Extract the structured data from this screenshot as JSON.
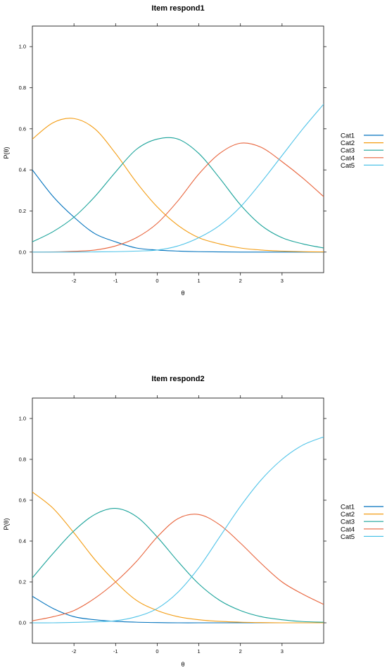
{
  "chart_data": [
    {
      "type": "line",
      "title": "Item respond1",
      "xlabel": "θ",
      "ylabel": "P(θ)",
      "xlim": [
        -3,
        4
      ],
      "ylim": [
        -0.1,
        1.1
      ],
      "x_ticks": [
        "-2",
        "-1",
        "0",
        "1",
        "2",
        "3"
      ],
      "y_ticks": [
        "0.0",
        "0.2",
        "0.4",
        "0.6",
        "0.8",
        "1.0"
      ],
      "grid": false,
      "legend_position": "right",
      "x": [
        -3,
        -2.5,
        -2,
        -1.5,
        -1,
        -0.5,
        0,
        0.5,
        1,
        1.5,
        2,
        2.5,
        3,
        3.5,
        4
      ],
      "series": [
        {
          "name": "Cat1",
          "color": "#0072BD",
          "values": [
            0.4,
            0.27,
            0.17,
            0.09,
            0.05,
            0.02,
            0.01,
            0.005,
            0.002,
            0.001,
            0.0,
            0.0,
            0.0,
            0.0,
            0.0
          ]
        },
        {
          "name": "Cat2",
          "color": "#F39C12",
          "values": [
            0.55,
            0.63,
            0.65,
            0.6,
            0.48,
            0.34,
            0.22,
            0.13,
            0.07,
            0.04,
            0.02,
            0.01,
            0.005,
            0.002,
            0.001
          ]
        },
        {
          "name": "Cat3",
          "color": "#1AA39A",
          "values": [
            0.05,
            0.1,
            0.17,
            0.27,
            0.39,
            0.5,
            0.55,
            0.55,
            0.48,
            0.36,
            0.23,
            0.13,
            0.07,
            0.04,
            0.02
          ]
        },
        {
          "name": "Cat4",
          "color": "#E8643C",
          "values": [
            0.0,
            0.001,
            0.004,
            0.01,
            0.03,
            0.07,
            0.14,
            0.25,
            0.38,
            0.48,
            0.53,
            0.51,
            0.44,
            0.36,
            0.27
          ]
        },
        {
          "name": "Cat5",
          "color": "#4FC3E8",
          "values": [
            0.0,
            0.0,
            0.0,
            0.001,
            0.002,
            0.005,
            0.01,
            0.03,
            0.07,
            0.13,
            0.22,
            0.34,
            0.47,
            0.6,
            0.72
          ]
        }
      ]
    },
    {
      "type": "line",
      "title": "Item respond2",
      "xlabel": "θ",
      "ylabel": "P(θ)",
      "xlim": [
        -3,
        4
      ],
      "ylim": [
        -0.1,
        1.1
      ],
      "x_ticks": [
        "-2",
        "-1",
        "0",
        "1",
        "2",
        "3"
      ],
      "y_ticks": [
        "0.0",
        "0.2",
        "0.4",
        "0.6",
        "0.8",
        "1.0"
      ],
      "grid": false,
      "legend_position": "right",
      "x": [
        -3,
        -2.5,
        -2,
        -1.5,
        -1,
        -0.5,
        0,
        0.5,
        1,
        1.5,
        2,
        2.5,
        3,
        3.5,
        4
      ],
      "series": [
        {
          "name": "Cat1",
          "color": "#0072BD",
          "values": [
            0.13,
            0.07,
            0.03,
            0.015,
            0.007,
            0.003,
            0.001,
            0.0,
            0.0,
            0.0,
            0.0,
            0.0,
            0.0,
            0.0,
            0.0
          ]
        },
        {
          "name": "Cat2",
          "color": "#F39C12",
          "values": [
            0.64,
            0.56,
            0.44,
            0.31,
            0.2,
            0.11,
            0.06,
            0.03,
            0.015,
            0.007,
            0.003,
            0.001,
            0.0,
            0.0,
            0.0
          ]
        },
        {
          "name": "Cat3",
          "color": "#1AA39A",
          "values": [
            0.22,
            0.34,
            0.45,
            0.53,
            0.56,
            0.52,
            0.42,
            0.3,
            0.19,
            0.11,
            0.06,
            0.03,
            0.015,
            0.006,
            0.003
          ]
        },
        {
          "name": "Cat4",
          "color": "#E8643C",
          "values": [
            0.01,
            0.03,
            0.06,
            0.12,
            0.2,
            0.3,
            0.42,
            0.51,
            0.53,
            0.48,
            0.39,
            0.29,
            0.2,
            0.14,
            0.09
          ]
        },
        {
          "name": "Cat5",
          "color": "#4FC3E8",
          "values": [
            0.0,
            0.0,
            0.002,
            0.005,
            0.01,
            0.03,
            0.07,
            0.15,
            0.27,
            0.42,
            0.57,
            0.7,
            0.8,
            0.87,
            0.91
          ]
        }
      ]
    }
  ]
}
